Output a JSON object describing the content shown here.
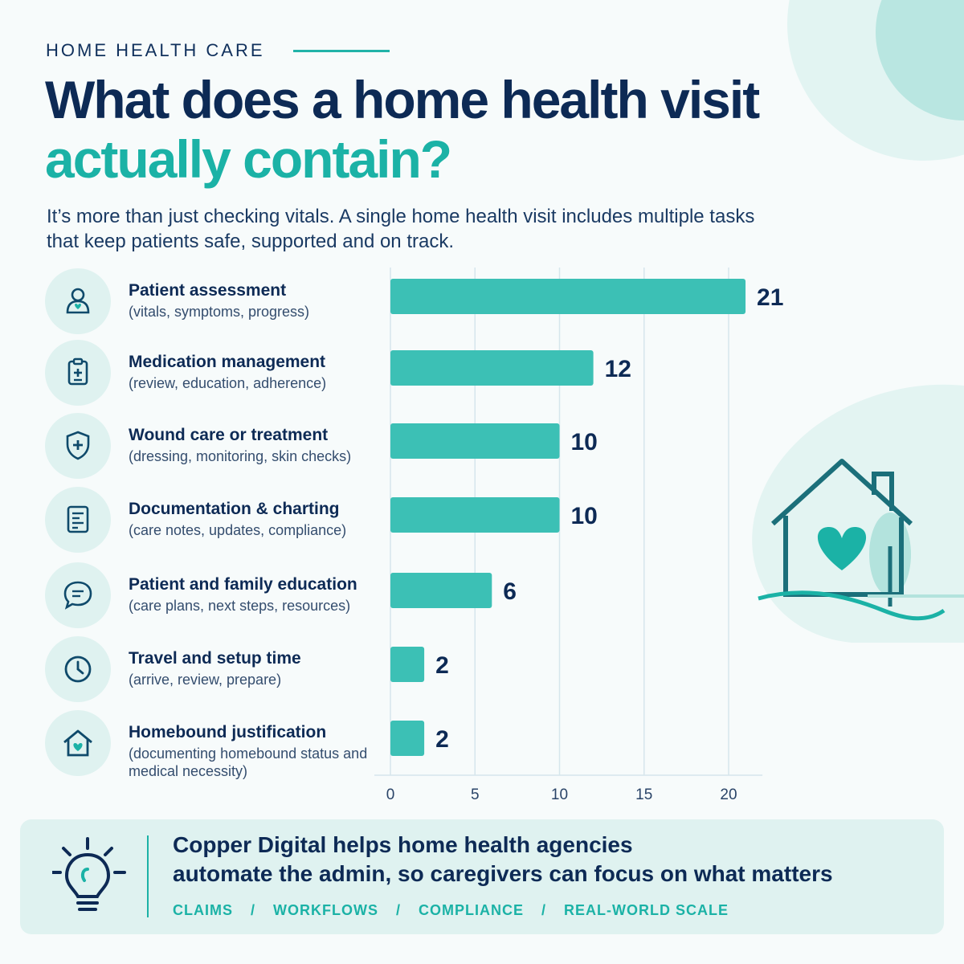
{
  "header": {
    "kicker": "HOME HEALTH CARE",
    "title_line1": "What does a home health visit",
    "title_line2": "actually contain?",
    "subtitle": "It’s more than just checking vitals. A single home health visit includes multiple tasks that keep patients safe, supported and on track."
  },
  "chart_data": {
    "type": "bar",
    "orientation": "horizontal",
    "categories": [
      "Patient assessment",
      "Medication management",
      "Wound care or treatment",
      "Documentation & charting",
      "Patient and family education",
      "Travel and setup time",
      "Homebound justification"
    ],
    "descriptions": [
      "(vitals, symptoms, progress)",
      "(review, education, adherence)",
      "(dressing, monitoring, skin checks)",
      "(care notes, updates, compliance)",
      "(care plans, next steps, resources)",
      "(arrive, review, prepare)",
      "(documenting homebound status and medical necessity)"
    ],
    "icons": [
      "patient-icon",
      "clipboard-icon",
      "shield-plus-icon",
      "document-icon",
      "chat-icon",
      "clock-icon",
      "home-heart-icon"
    ],
    "values": [
      21,
      12,
      10,
      10,
      6,
      2,
      2
    ],
    "xlim": [
      0,
      22
    ],
    "xticks": [
      0,
      5,
      10,
      15,
      20
    ],
    "grid": true,
    "bar_color": "#3cc0b5"
  },
  "footer": {
    "line1": "Copper Digital helps  home health agencies",
    "line2": "automate the admin, so caregivers can focus on what matters",
    "tags": [
      "CLAIMS",
      "WORKFLOWS",
      "COMPLIANCE",
      "REAL-WORLD SCALE"
    ],
    "separator": "/"
  },
  "colors": {
    "navy": "#0d2a55",
    "teal": "#1bb2a6",
    "light_teal": "#dff2f0"
  }
}
